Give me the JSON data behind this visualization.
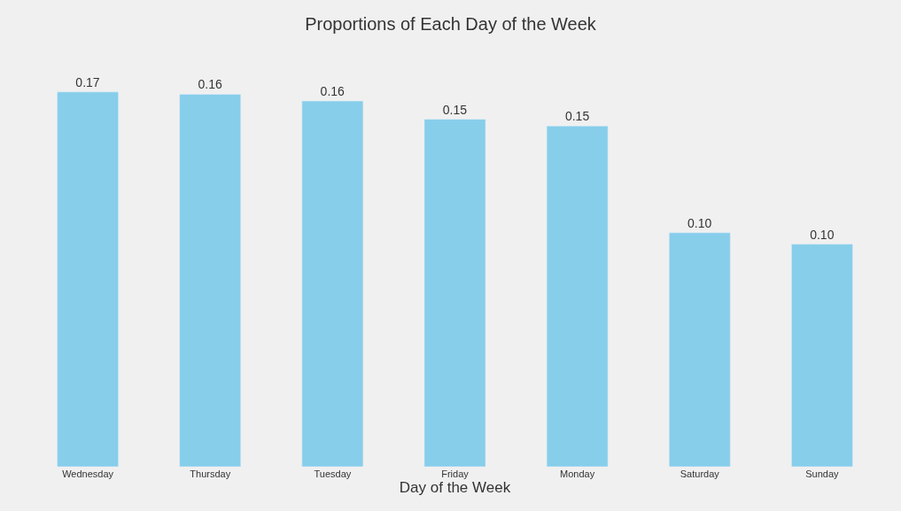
{
  "chart_data": {
    "type": "bar",
    "title": "Proportions of Each Day of the Week",
    "xlabel": "Day of the Week",
    "categories": [
      "Wednesday",
      "Thursday",
      "Tuesday",
      "Friday",
      "Monday",
      "Saturday",
      "Sunday"
    ],
    "values": [
      0.165,
      0.164,
      0.161,
      0.153,
      0.15,
      0.103,
      0.098
    ],
    "value_labels": [
      "0.17",
      "0.16",
      "0.16",
      "0.15",
      "0.15",
      "0.10",
      "0.10"
    ],
    "color": "#87ceeb",
    "grid": false,
    "legend": false
  }
}
